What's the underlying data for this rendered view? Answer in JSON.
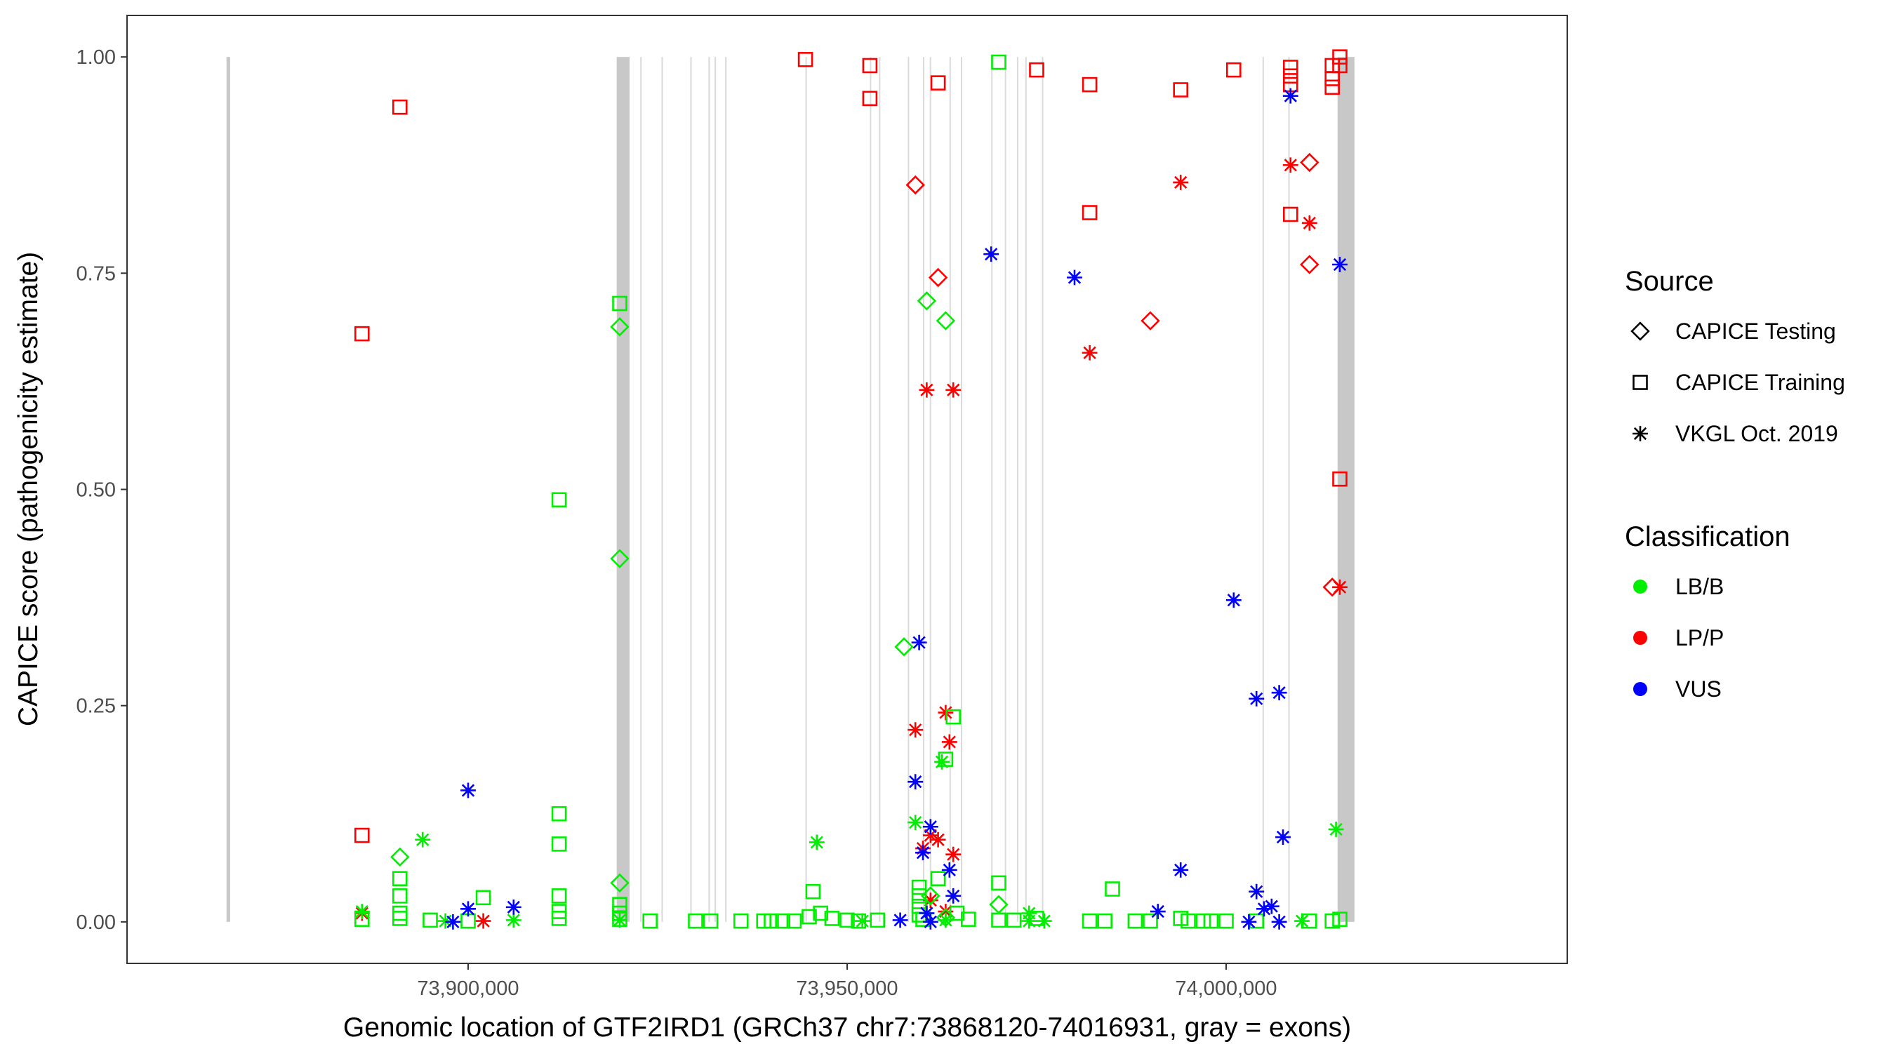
{
  "chart_data": {
    "type": "scatter",
    "xlabel": "Genomic location of GTF2IRD1 (GRCh37 chr7:73868120-74016931, gray = exons)",
    "ylabel": "CAPICE score (pathogenicity estimate)",
    "xlim": [
      73855000,
      74045000
    ],
    "ylim": [
      -0.048,
      1.048
    ],
    "x_ticks": [
      73900000,
      73950000,
      74000000
    ],
    "x_tick_labels": [
      "73,900,000",
      "73,950,000",
      "74,000,000"
    ],
    "y_ticks": [
      0,
      0.25,
      0.5,
      0.75,
      1.0
    ],
    "y_tick_labels": [
      "0.00",
      "0.25",
      "0.50",
      "0.75",
      "1.00"
    ],
    "grid": false,
    "exons": [
      [
        73868120,
        73868600
      ],
      [
        73919600,
        73921300
      ],
      [
        73922700,
        73922900
      ],
      [
        73925500,
        73925700
      ],
      [
        73929300,
        73929500
      ],
      [
        73931700,
        73931900
      ],
      [
        73932500,
        73932700
      ],
      [
        73933900,
        73934100
      ],
      [
        73944500,
        73944650
      ],
      [
        73953000,
        73953150
      ],
      [
        73954200,
        73954350
      ],
      [
        73958000,
        73958150
      ],
      [
        73960000,
        73960150
      ],
      [
        73960900,
        73961050
      ],
      [
        73963500,
        73963650
      ],
      [
        73965000,
        73965150
      ],
      [
        73969000,
        73969150
      ],
      [
        73970800,
        73970950
      ],
      [
        73972400,
        73972550
      ],
      [
        73973500,
        73973650
      ],
      [
        73975700,
        73975850
      ],
      [
        74004800,
        74004950
      ],
      [
        74008200,
        74008350
      ],
      [
        74014700,
        74016931
      ]
    ],
    "colors": {
      "LB/B": "#00ee00",
      "LP/P": "#ff0000",
      "VUS": "#0000ff",
      "exon": "#bebebe"
    },
    "legends": [
      {
        "title": "Source",
        "entries": [
          {
            "label": "CAPICE Testing",
            "shape": "diamond"
          },
          {
            "label": "CAPICE Training",
            "shape": "square"
          },
          {
            "label": "VKGL Oct. 2019",
            "shape": "asterisk"
          }
        ]
      },
      {
        "title": "Classification",
        "entries": [
          {
            "label": "LB/B",
            "shape": "dot"
          },
          {
            "label": "LP/P",
            "shape": "dot"
          },
          {
            "label": "VUS",
            "shape": "dot"
          }
        ]
      }
    ],
    "series": [
      {
        "source": "CAPICE Training",
        "class": "LP/P",
        "points": [
          [
            73886000,
            0.68
          ],
          [
            73886000,
            0.1
          ],
          [
            73891000,
            0.942
          ],
          [
            73944500,
            0.997
          ],
          [
            73953000,
            0.99
          ],
          [
            73953000,
            0.952
          ],
          [
            73962000,
            0.97
          ],
          [
            73975000,
            0.985
          ],
          [
            73982000,
            0.968
          ],
          [
            73982000,
            0.82
          ],
          [
            73994000,
            0.962
          ],
          [
            74001000,
            0.985
          ],
          [
            74008500,
            0.988
          ],
          [
            74008500,
            0.978
          ],
          [
            74008500,
            0.968
          ],
          [
            74008500,
            0.818
          ],
          [
            74014000,
            0.99
          ],
          [
            74014000,
            0.975
          ],
          [
            74014000,
            0.965
          ],
          [
            74015000,
            1.0
          ],
          [
            74015000,
            0.99
          ],
          [
            74015000,
            0.512
          ]
        ]
      },
      {
        "source": "CAPICE Testing",
        "class": "LP/P",
        "points": [
          [
            73959000,
            0.852
          ],
          [
            73962000,
            0.745
          ],
          [
            73990000,
            0.695
          ],
          [
            74011000,
            0.878
          ],
          [
            74011000,
            0.76
          ],
          [
            74014000,
            0.387
          ]
        ]
      },
      {
        "source": "VKGL Oct. 2019",
        "class": "LP/P",
        "points": [
          [
            73886000,
            0.01
          ],
          [
            73902000,
            0.001
          ],
          [
            73960500,
            0.615
          ],
          [
            73964000,
            0.615
          ],
          [
            73982000,
            0.658
          ],
          [
            73994000,
            0.855
          ],
          [
            74008500,
            0.875
          ],
          [
            74011000,
            0.808
          ],
          [
            74015000,
            0.387
          ],
          [
            73959000,
            0.222
          ],
          [
            73963000,
            0.242
          ],
          [
            73963500,
            0.208
          ],
          [
            73960000,
            0.085
          ],
          [
            73961000,
            0.1
          ],
          [
            73962000,
            0.095
          ],
          [
            73964000,
            0.078
          ],
          [
            73961000,
            0.025
          ],
          [
            73963000,
            0.012
          ]
        ]
      },
      {
        "source": "CAPICE Training",
        "class": "LB/B",
        "points": [
          [
            73886000,
            0.003
          ],
          [
            73891000,
            0.05
          ],
          [
            73891000,
            0.03
          ],
          [
            73891000,
            0.01
          ],
          [
            73891000,
            0.004
          ],
          [
            73895000,
            0.002
          ],
          [
            73900000,
            0.001
          ],
          [
            73902000,
            0.028
          ],
          [
            73912000,
            0.488
          ],
          [
            73912000,
            0.125
          ],
          [
            73912000,
            0.09
          ],
          [
            73912000,
            0.03
          ],
          [
            73912000,
            0.012
          ],
          [
            73912000,
            0.004
          ],
          [
            73920000,
            0.715
          ],
          [
            73920000,
            0.02
          ],
          [
            73920000,
            0.01
          ],
          [
            73920000,
            0.003
          ],
          [
            73924000,
            0.001
          ],
          [
            73930000,
            0.001
          ],
          [
            73932000,
            0.001
          ],
          [
            73936000,
            0.001
          ],
          [
            73939000,
            0.001
          ],
          [
            73940000,
            0.001
          ],
          [
            73941500,
            0.001
          ],
          [
            73943000,
            0.001
          ],
          [
            73945000,
            0.006
          ],
          [
            73945500,
            0.035
          ],
          [
            73946500,
            0.01
          ],
          [
            73948000,
            0.004
          ],
          [
            73950000,
            0.002
          ],
          [
            73951500,
            0.001
          ],
          [
            73954000,
            0.002
          ],
          [
            73959500,
            0.04
          ],
          [
            73959500,
            0.03
          ],
          [
            73959500,
            0.018
          ],
          [
            73959500,
            0.008
          ],
          [
            73960000,
            0.003
          ],
          [
            73962000,
            0.05
          ],
          [
            73963000,
            0.188
          ],
          [
            73964000,
            0.237
          ],
          [
            73964500,
            0.01
          ],
          [
            73966000,
            0.003
          ],
          [
            73970000,
            0.994
          ],
          [
            73970000,
            0.045
          ],
          [
            73970000,
            0.002
          ],
          [
            73972000,
            0.002
          ],
          [
            73975000,
            0.004
          ],
          [
            73982000,
            0.001
          ],
          [
            73984000,
            0.001
          ],
          [
            73985000,
            0.038
          ],
          [
            73988000,
            0.001
          ],
          [
            73990000,
            0.001
          ],
          [
            73994000,
            0.004
          ],
          [
            73995000,
            0.001
          ],
          [
            73997000,
            0.001
          ],
          [
            73998000,
            0.001
          ],
          [
            74000000,
            0.001
          ],
          [
            74004000,
            0.001
          ],
          [
            74011000,
            0.001
          ],
          [
            74014000,
            0.001
          ],
          [
            74015000,
            0.003
          ]
        ]
      },
      {
        "source": "CAPICE Testing",
        "class": "LB/B",
        "points": [
          [
            73891000,
            0.075
          ],
          [
            73920000,
            0.688
          ],
          [
            73920000,
            0.42
          ],
          [
            73920000,
            0.045
          ],
          [
            73957500,
            0.318
          ],
          [
            73960500,
            0.718
          ],
          [
            73963000,
            0.695
          ],
          [
            73961000,
            0.03
          ],
          [
            73970000,
            0.02
          ],
          [
            73963000,
            0.005
          ]
        ]
      },
      {
        "source": "VKGL Oct. 2019",
        "class": "LB/B",
        "points": [
          [
            73886000,
            0.012
          ],
          [
            73894000,
            0.095
          ],
          [
            73897000,
            0.001
          ],
          [
            73906000,
            0.002
          ],
          [
            73920000,
            0.002
          ],
          [
            73946000,
            0.092
          ],
          [
            73952000,
            0.001
          ],
          [
            73959000,
            0.115
          ],
          [
            73962500,
            0.185
          ],
          [
            73960500,
            0.01
          ],
          [
            73963000,
            0.002
          ],
          [
            73974000,
            0.01
          ],
          [
            73974000,
            0.001
          ],
          [
            73976000,
            0.001
          ],
          [
            74010000,
            0.001
          ],
          [
            74014500,
            0.107
          ]
        ]
      },
      {
        "source": "VKGL Oct. 2019",
        "class": "VUS",
        "points": [
          [
            73898000,
            0.0
          ],
          [
            73900000,
            0.152
          ],
          [
            73900000,
            0.015
          ],
          [
            73906000,
            0.017
          ],
          [
            73957000,
            0.002
          ],
          [
            73959000,
            0.162
          ],
          [
            73959500,
            0.323
          ],
          [
            73960000,
            0.08
          ],
          [
            73961000,
            0.11
          ],
          [
            73960500,
            0.01
          ],
          [
            73961000,
            0.0
          ],
          [
            73963500,
            0.06
          ],
          [
            73964000,
            0.03
          ],
          [
            73969000,
            0.772
          ],
          [
            73980000,
            0.745
          ],
          [
            73991000,
            0.012
          ],
          [
            73994000,
            0.06
          ],
          [
            74001000,
            0.372
          ],
          [
            74003000,
            0.0
          ],
          [
            74004000,
            0.035
          ],
          [
            74004000,
            0.258
          ],
          [
            74005000,
            0.015
          ],
          [
            74006000,
            0.018
          ],
          [
            74007000,
            0.265
          ],
          [
            74007500,
            0.098
          ],
          [
            74008500,
            0.955
          ],
          [
            74015000,
            0.76
          ],
          [
            74007000,
            0.0
          ]
        ]
      }
    ]
  }
}
